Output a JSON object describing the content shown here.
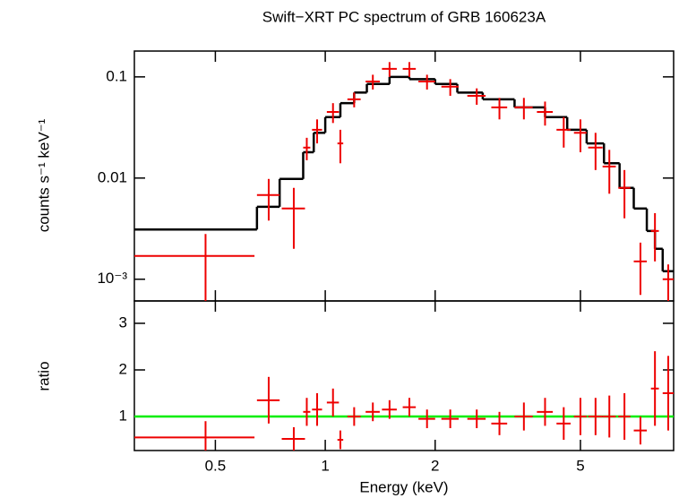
{
  "chart_data": [
    {
      "type": "scatter",
      "title": "Swift−XRT PC spectrum of GRB 160623A",
      "ylabel": "counts s⁻¹ keV⁻¹",
      "log_x": true,
      "log_y": true,
      "xlim": [
        0.3,
        9
      ],
      "ylim": [
        0.00061,
        0.18
      ],
      "yticks": [
        0.1,
        0.01,
        {
          "value": 0.001,
          "label": "10⁻³"
        }
      ],
      "color": "#ee0000",
      "x": [
        0.47,
        0.7,
        0.82,
        0.89,
        0.95,
        1.05,
        1.1,
        1.2,
        1.35,
        1.5,
        1.7,
        1.9,
        2.2,
        2.6,
        3.0,
        3.5,
        4.0,
        4.5,
        5.0,
        5.5,
        6.0,
        6.6,
        7.3,
        8.0,
        8.7
      ],
      "xerr": [
        0.17,
        0.05,
        0.06,
        0.02,
        0.03,
        0.04,
        0.02,
        0.05,
        0.06,
        0.07,
        0.07,
        0.1,
        0.12,
        0.15,
        0.15,
        0.2,
        0.2,
        0.2,
        0.2,
        0.25,
        0.25,
        0.25,
        0.3,
        0.2,
        0.3
      ],
      "values": [
        0.0017,
        0.0068,
        0.005,
        0.02,
        0.03,
        0.045,
        0.022,
        0.06,
        0.09,
        0.12,
        0.12,
        0.09,
        0.08,
        0.065,
        0.05,
        0.05,
        0.045,
        0.03,
        0.028,
        0.02,
        0.013,
        0.008,
        0.0015,
        0.003,
        0.001
      ],
      "yerr": [
        0.0011,
        0.003,
        0.003,
        0.005,
        0.008,
        0.01,
        0.008,
        0.01,
        0.015,
        0.02,
        0.02,
        0.015,
        0.015,
        0.012,
        0.012,
        0.012,
        0.012,
        0.01,
        0.01,
        0.008,
        0.006,
        0.004,
        0.0008,
        0.0015,
        0.0004
      ],
      "model": {
        "color": "#000000",
        "bins": [
          0.3,
          0.65,
          0.75,
          0.87,
          0.93,
          1.0,
          1.1,
          1.2,
          1.3,
          1.5,
          1.7,
          2.0,
          2.3,
          2.7,
          3.3,
          4.0,
          4.6,
          5.2,
          5.8,
          6.4,
          7.0,
          7.6,
          8.0,
          8.4,
          9.0
        ],
        "values": [
          0.0031,
          0.0052,
          0.0098,
          0.018,
          0.028,
          0.04,
          0.055,
          0.07,
          0.085,
          0.1,
          0.095,
          0.085,
          0.07,
          0.06,
          0.05,
          0.04,
          0.03,
          0.022,
          0.014,
          0.008,
          0.005,
          0.003,
          0.002,
          0.0012
        ]
      }
    },
    {
      "type": "scatter",
      "xlabel": "Energy (keV)",
      "ylabel": "ratio",
      "log_x": true,
      "log_y": false,
      "xlim": [
        0.3,
        9
      ],
      "ylim": [
        0.27,
        3.48
      ],
      "xticks": [
        0.5,
        1,
        2,
        5
      ],
      "yticks": [
        1,
        2,
        3
      ],
      "color": "#ee0000",
      "x": [
        0.47,
        0.7,
        0.82,
        0.89,
        0.95,
        1.05,
        1.1,
        1.2,
        1.35,
        1.5,
        1.7,
        1.9,
        2.2,
        2.6,
        3.0,
        3.5,
        4.0,
        4.5,
        5.0,
        5.5,
        6.0,
        6.6,
        7.3,
        8.0,
        8.7
      ],
      "xerr": [
        0.17,
        0.05,
        0.06,
        0.02,
        0.03,
        0.04,
        0.02,
        0.05,
        0.06,
        0.07,
        0.07,
        0.1,
        0.12,
        0.15,
        0.15,
        0.2,
        0.2,
        0.2,
        0.2,
        0.25,
        0.25,
        0.25,
        0.3,
        0.2,
        0.3
      ],
      "values": [
        0.55,
        1.35,
        0.52,
        1.1,
        1.15,
        1.3,
        0.5,
        1.0,
        1.1,
        1.15,
        1.2,
        0.95,
        0.95,
        0.95,
        0.85,
        1.0,
        1.1,
        0.85,
        1.0,
        1.0,
        1.0,
        1.0,
        0.7,
        1.6,
        1.5
      ],
      "yerr": [
        0.35,
        0.5,
        0.25,
        0.3,
        0.35,
        0.3,
        0.2,
        0.2,
        0.2,
        0.2,
        0.2,
        0.2,
        0.2,
        0.2,
        0.25,
        0.3,
        0.3,
        0.35,
        0.4,
        0.4,
        0.45,
        0.5,
        0.3,
        0.8,
        0.8
      ],
      "ref_line": {
        "value": 1,
        "color": "#00ee00"
      }
    }
  ]
}
